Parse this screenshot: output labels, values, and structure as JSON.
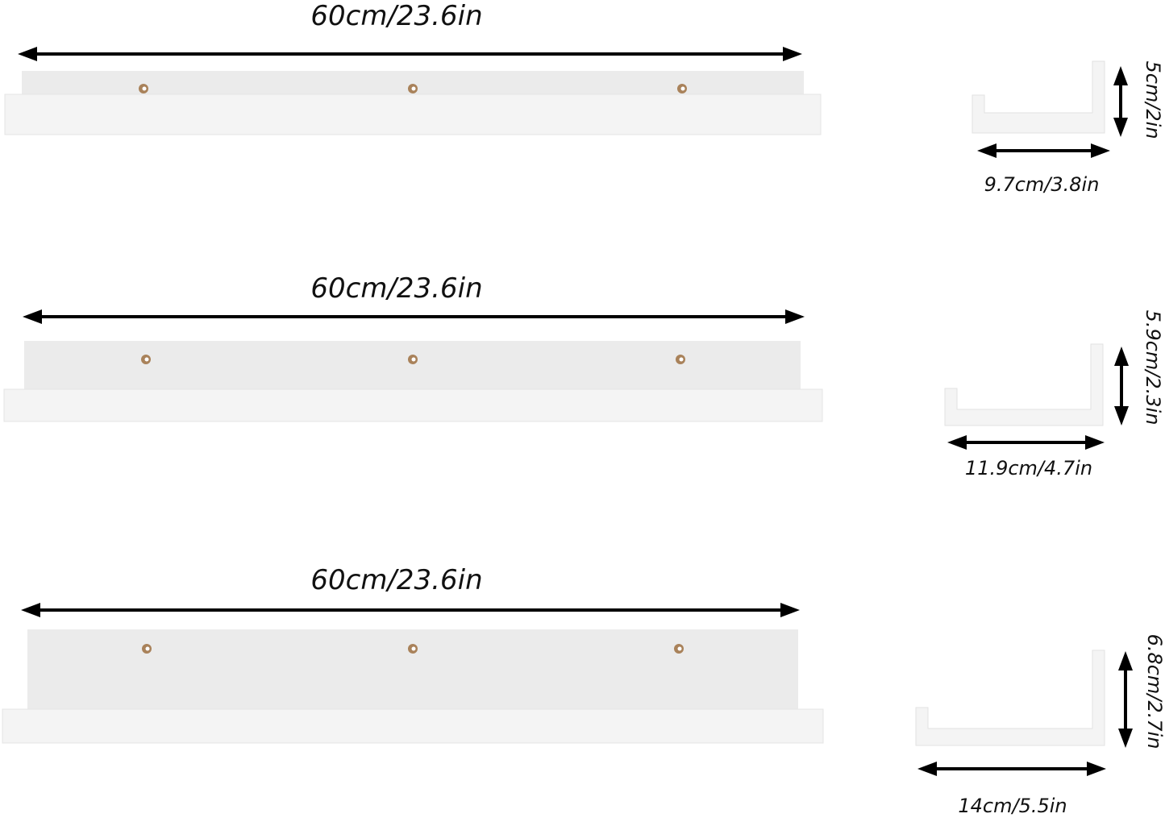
{
  "shelves": [
    {
      "length_label": "60cm/23.6in",
      "depth_label": "9.7cm/3.8in",
      "height_label": "5cm/2in"
    },
    {
      "length_label": "60cm/23.6in",
      "depth_label": "11.9cm/4.7in",
      "height_label": "5.9cm/2.3in"
    },
    {
      "length_label": "60cm/23.6in",
      "depth_label": "14cm/5.5in",
      "height_label": "6.8cm/2.7in"
    }
  ],
  "colors": {
    "shelf": "#f4f4f4",
    "back_panel": "#ebebeb",
    "screw": "#a9825a",
    "arrow": "#000000"
  }
}
